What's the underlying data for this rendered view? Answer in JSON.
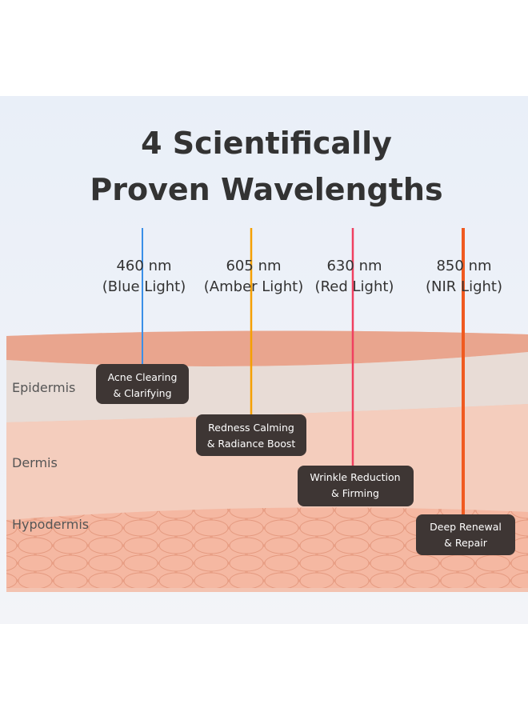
{
  "header": {
    "title_lines": [
      "4 Scientifically",
      "Proven Wavelengths"
    ]
  },
  "wavelengths": [
    {
      "wavelength": "460 nm",
      "light": "(Blue Light)"
    },
    {
      "wavelength": "605 nm",
      "light": "(Amber Light)"
    },
    {
      "wavelength": "630 nm",
      "light": "(Red Light)"
    },
    {
      "wavelength": "850 nm",
      "light": "(NIR Light)"
    }
  ],
  "layers": [
    "Epidermis",
    "Dermis",
    "Hypodermis"
  ],
  "benefits": [
    {
      "line1": "Acne Clearing",
      "line2": "& Clarifying"
    },
    {
      "line1": "Redness Calming",
      "line2": "& Radiance Boost"
    },
    {
      "line1": "Wrinkle Reduction",
      "line2": "& Firming"
    },
    {
      "line1": "Deep Renewal",
      "line2": "& Repair"
    }
  ]
}
